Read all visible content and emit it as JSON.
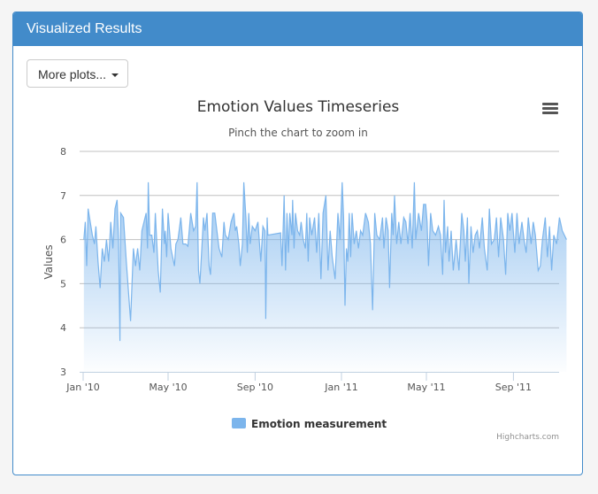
{
  "panel": {
    "title": "Visualized Results",
    "button_label": "More plots..."
  },
  "chart_data": {
    "type": "area",
    "title": "Emotion Values Timeseries",
    "subtitle": "Pinch the chart to zoom in",
    "ylabel": "Values",
    "xlabel": "",
    "ylim": [
      3,
      8
    ],
    "yticks": [
      "3",
      "4",
      "5",
      "6",
      "7",
      "8"
    ],
    "xticks": [
      {
        "date": "2010-01-01",
        "label": "Jan '10"
      },
      {
        "date": "2010-05-01",
        "label": "May '10"
      },
      {
        "date": "2010-09-01",
        "label": "Sep '10"
      },
      {
        "date": "2011-01-01",
        "label": "Jan '11"
      },
      {
        "date": "2011-05-01",
        "label": "May '11"
      },
      {
        "date": "2011-09-01",
        "label": "Sep '11"
      }
    ],
    "grid": true,
    "legend_position": "bottom",
    "series": [
      {
        "name": "Emotion measurement",
        "color": "#7cb5ec",
        "points": [
          [
            "2010-01-02",
            6.0
          ],
          [
            "2010-01-04",
            6.4
          ],
          [
            "2010-01-06",
            5.4
          ],
          [
            "2010-01-08",
            6.7
          ],
          [
            "2010-01-11",
            6.4
          ],
          [
            "2010-01-14",
            6.1
          ],
          [
            "2010-01-17",
            5.9
          ],
          [
            "2010-01-19",
            6.3
          ],
          [
            "2010-01-22",
            5.5
          ],
          [
            "2010-01-25",
            4.9
          ],
          [
            "2010-01-28",
            5.8
          ],
          [
            "2010-01-31",
            5.5
          ],
          [
            "2010-02-03",
            6.0
          ],
          [
            "2010-02-06",
            5.5
          ],
          [
            "2010-02-09",
            6.4
          ],
          [
            "2010-02-12",
            5.8
          ],
          [
            "2010-02-15",
            6.7
          ],
          [
            "2010-02-18",
            6.9
          ],
          [
            "2010-02-20",
            6.0
          ],
          [
            "2010-02-22",
            3.7
          ],
          [
            "2010-02-23",
            6.6
          ],
          [
            "2010-02-27",
            6.5
          ],
          [
            "2010-03-03",
            5.5
          ],
          [
            "2010-03-09",
            4.15
          ],
          [
            "2010-03-13",
            5.8
          ],
          [
            "2010-03-16",
            5.4
          ],
          [
            "2010-03-19",
            5.8
          ],
          [
            "2010-03-22",
            5.3
          ],
          [
            "2010-03-25",
            6.2
          ],
          [
            "2010-03-31",
            6.6
          ],
          [
            "2010-04-02",
            5.8
          ],
          [
            "2010-04-03",
            7.3
          ],
          [
            "2010-04-05",
            6.1
          ],
          [
            "2010-04-08",
            6.1
          ],
          [
            "2010-04-11",
            5.7
          ],
          [
            "2010-04-13",
            6.6
          ],
          [
            "2010-04-17",
            5.3
          ],
          [
            "2010-04-20",
            4.8
          ],
          [
            "2010-04-23",
            6.7
          ],
          [
            "2010-04-26",
            5.9
          ],
          [
            "2010-04-27",
            6.2
          ],
          [
            "2010-04-29",
            5.6
          ],
          [
            "2010-05-01",
            6.6
          ],
          [
            "2010-05-05",
            5.8
          ],
          [
            "2010-05-10",
            5.4
          ],
          [
            "2010-05-12",
            5.9
          ],
          [
            "2010-05-15",
            6.0
          ],
          [
            "2010-05-19",
            6.5
          ],
          [
            "2010-05-22",
            5.9
          ],
          [
            "2010-05-26",
            5.9
          ],
          [
            "2010-05-29",
            5.85
          ],
          [
            "2010-06-02",
            6.6
          ],
          [
            "2010-06-06",
            6.2
          ],
          [
            "2010-06-09",
            6.3
          ],
          [
            "2010-06-11",
            7.3
          ],
          [
            "2010-06-13",
            5.3
          ],
          [
            "2010-06-15",
            5.0
          ],
          [
            "2010-06-20",
            6.5
          ],
          [
            "2010-06-22",
            6.2
          ],
          [
            "2010-06-25",
            6.6
          ],
          [
            "2010-06-28",
            5.4
          ],
          [
            "2010-06-30",
            5.2
          ],
          [
            "2010-07-03",
            6.6
          ],
          [
            "2010-07-06",
            6.6
          ],
          [
            "2010-07-12",
            5.8
          ],
          [
            "2010-07-16",
            5.6
          ],
          [
            "2010-07-19",
            6.4
          ],
          [
            "2010-07-21",
            6.1
          ],
          [
            "2010-07-25",
            6.0
          ],
          [
            "2010-07-29",
            6.4
          ],
          [
            "2010-08-02",
            6.6
          ],
          [
            "2010-08-04",
            6.2
          ],
          [
            "2010-08-06",
            6.3
          ],
          [
            "2010-08-09",
            5.9
          ],
          [
            "2010-08-11",
            5.4
          ],
          [
            "2010-08-14",
            5.9
          ],
          [
            "2010-08-16",
            7.3
          ],
          [
            "2010-08-19",
            6.5
          ],
          [
            "2010-08-21",
            5.7
          ],
          [
            "2010-08-23",
            6.6
          ],
          [
            "2010-08-25",
            5.9
          ],
          [
            "2010-08-28",
            6.3
          ],
          [
            "2010-09-01",
            6.2
          ],
          [
            "2010-09-05",
            6.4
          ],
          [
            "2010-09-09",
            5.5
          ],
          [
            "2010-09-12",
            6.3
          ],
          [
            "2010-09-15",
            6.2
          ],
          [
            "2010-09-16",
            4.2
          ],
          [
            "2010-09-18",
            6.5
          ],
          [
            "2010-09-19",
            6.1
          ],
          [
            "2010-10-07",
            6.15
          ],
          [
            "2010-10-09",
            5.4
          ],
          [
            "2010-10-12",
            7.0
          ],
          [
            "2010-10-14",
            5.3
          ],
          [
            "2010-10-16",
            6.6
          ],
          [
            "2010-10-18",
            5.7
          ],
          [
            "2010-10-20",
            6.6
          ],
          [
            "2010-10-23",
            6.1
          ],
          [
            "2010-10-24",
            6.9
          ],
          [
            "2010-10-26",
            5.8
          ],
          [
            "2010-10-28",
            6.6
          ],
          [
            "2010-10-31",
            6.2
          ],
          [
            "2010-11-03",
            6.1
          ],
          [
            "2010-11-05",
            6.4
          ],
          [
            "2010-11-08",
            6.0
          ],
          [
            "2010-11-11",
            5.8
          ],
          [
            "2010-11-13",
            6.6
          ],
          [
            "2010-11-15",
            5.5
          ],
          [
            "2010-11-17",
            6.5
          ],
          [
            "2010-11-20",
            6.1
          ],
          [
            "2010-11-24",
            6.5
          ],
          [
            "2010-11-27",
            5.7
          ],
          [
            "2010-11-30",
            6.6
          ],
          [
            "2010-12-03",
            5.1
          ],
          [
            "2010-12-06",
            6.6
          ],
          [
            "2010-12-10",
            7.0
          ],
          [
            "2010-12-13",
            5.3
          ],
          [
            "2010-12-16",
            6.2
          ],
          [
            "2010-12-19",
            5.6
          ],
          [
            "2010-12-23",
            5.1
          ],
          [
            "2010-12-27",
            6.6
          ],
          [
            "2010-12-30",
            6.0
          ],
          [
            "2011-01-02",
            7.3
          ],
          [
            "2011-01-04",
            6.5
          ],
          [
            "2011-01-06",
            4.5
          ],
          [
            "2011-01-08",
            5.8
          ],
          [
            "2011-01-10",
            5.5
          ],
          [
            "2011-01-12",
            6.6
          ],
          [
            "2011-01-14",
            5.6
          ],
          [
            "2011-01-16",
            6.6
          ],
          [
            "2011-01-19",
            5.9
          ],
          [
            "2011-01-22",
            6.2
          ],
          [
            "2011-01-25",
            5.8
          ],
          [
            "2011-01-28",
            6.2
          ],
          [
            "2011-01-31",
            6.1
          ],
          [
            "2011-02-04",
            6.6
          ],
          [
            "2011-02-08",
            6.4
          ],
          [
            "2011-02-11",
            5.9
          ],
          [
            "2011-02-14",
            4.4
          ],
          [
            "2011-02-17",
            6.6
          ],
          [
            "2011-02-20",
            6.1
          ],
          [
            "2011-02-24",
            6.0
          ],
          [
            "2011-02-28",
            6.5
          ],
          [
            "2011-03-02",
            5.8
          ],
          [
            "2011-03-05",
            6.5
          ],
          [
            "2011-03-08",
            6.2
          ],
          [
            "2011-03-10",
            4.9
          ],
          [
            "2011-03-13",
            6.6
          ],
          [
            "2011-03-15",
            6.1
          ],
          [
            "2011-03-17",
            7.0
          ],
          [
            "2011-03-20",
            5.9
          ],
          [
            "2011-03-23",
            6.4
          ],
          [
            "2011-03-26",
            5.9
          ],
          [
            "2011-03-30",
            6.5
          ],
          [
            "2011-04-02",
            6.4
          ],
          [
            "2011-04-05",
            5.9
          ],
          [
            "2011-04-08",
            6.6
          ],
          [
            "2011-04-11",
            5.8
          ],
          [
            "2011-04-14",
            7.3
          ],
          [
            "2011-04-16",
            6.0
          ],
          [
            "2011-04-20",
            6.6
          ],
          [
            "2011-04-24",
            6.2
          ],
          [
            "2011-04-27",
            6.8
          ],
          [
            "2011-04-30",
            6.8
          ],
          [
            "2011-05-02",
            6.4
          ],
          [
            "2011-05-04",
            5.4
          ],
          [
            "2011-05-07",
            6.6
          ],
          [
            "2011-05-10",
            6.2
          ],
          [
            "2011-05-14",
            6.1
          ],
          [
            "2011-05-18",
            6.3
          ],
          [
            "2011-05-21",
            6.1
          ],
          [
            "2011-05-24",
            5.2
          ],
          [
            "2011-05-26",
            6.9
          ],
          [
            "2011-05-28",
            5.7
          ],
          [
            "2011-05-31",
            6.3
          ],
          [
            "2011-06-02",
            5.5
          ],
          [
            "2011-06-05",
            6.2
          ],
          [
            "2011-06-08",
            5.3
          ],
          [
            "2011-06-12",
            6.0
          ],
          [
            "2011-06-16",
            5.3
          ],
          [
            "2011-06-20",
            6.6
          ],
          [
            "2011-06-23",
            6.2
          ],
          [
            "2011-06-25",
            5.5
          ],
          [
            "2011-06-28",
            6.5
          ],
          [
            "2011-06-30",
            5.0
          ],
          [
            "2011-07-03",
            6.3
          ],
          [
            "2011-07-06",
            5.7
          ],
          [
            "2011-07-09",
            6.1
          ],
          [
            "2011-07-12",
            6.2
          ],
          [
            "2011-07-15",
            5.8
          ],
          [
            "2011-07-19",
            6.5
          ],
          [
            "2011-07-22",
            5.8
          ],
          [
            "2011-07-26",
            5.3
          ],
          [
            "2011-07-29",
            6.7
          ],
          [
            "2011-08-01",
            5.9
          ],
          [
            "2011-08-05",
            6.0
          ],
          [
            "2011-08-08",
            6.5
          ],
          [
            "2011-08-11",
            5.6
          ],
          [
            "2011-08-14",
            6.5
          ],
          [
            "2011-08-18",
            6.0
          ],
          [
            "2011-08-21",
            5.2
          ],
          [
            "2011-08-24",
            6.6
          ],
          [
            "2011-08-27",
            6.2
          ],
          [
            "2011-08-30",
            6.6
          ],
          [
            "2011-09-03",
            5.7
          ],
          [
            "2011-09-06",
            6.6
          ],
          [
            "2011-09-09",
            5.9
          ],
          [
            "2011-09-13",
            6.4
          ],
          [
            "2011-09-16",
            6.0
          ],
          [
            "2011-09-19",
            5.7
          ],
          [
            "2011-09-22",
            6.5
          ],
          [
            "2011-09-26",
            5.9
          ],
          [
            "2011-09-29",
            6.4
          ],
          [
            "2011-10-02",
            6.1
          ],
          [
            "2011-10-06",
            5.3
          ],
          [
            "2011-10-09",
            5.4
          ],
          [
            "2011-10-12",
            6.0
          ],
          [
            "2011-10-16",
            6.5
          ],
          [
            "2011-10-19",
            5.6
          ],
          [
            "2011-10-22",
            6.3
          ],
          [
            "2011-10-25",
            5.3
          ],
          [
            "2011-10-28",
            6.1
          ],
          [
            "2011-11-01",
            5.9
          ],
          [
            "2011-11-05",
            6.5
          ],
          [
            "2011-11-09",
            6.2
          ],
          [
            "2011-11-15",
            6.0
          ]
        ]
      }
    ],
    "credits": "Highcharts.com",
    "menu_icon": "hamburger-menu-icon"
  }
}
